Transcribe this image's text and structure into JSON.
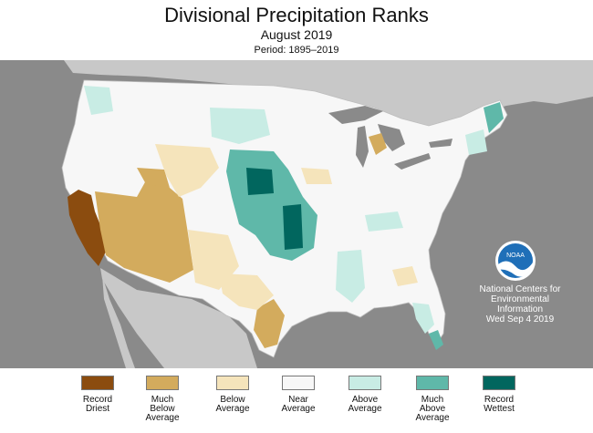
{
  "header": {
    "title": "Divisional Precipitation Ranks",
    "subtitle": "August 2019",
    "period": "Period: 1895–2019"
  },
  "credit": {
    "line1": "National Centers for",
    "line2": "Environmental",
    "line3": "Information",
    "date": "Wed Sep  4 2019",
    "logo_text": "NOAA"
  },
  "legend": {
    "items": [
      {
        "label": "Record\nDriest",
        "color": "#8b4c0f"
      },
      {
        "label": "Much\nBelow\nAverage",
        "color": "#d3ab5d"
      },
      {
        "label": "Below\nAverage",
        "color": "#f5e4bb"
      },
      {
        "label": "Near\nAverage",
        "color": "#f7f7f7"
      },
      {
        "label": "Above\nAverage",
        "color": "#c8ece4"
      },
      {
        "label": "Much\nAbove\nAverage",
        "color": "#5fb8a9"
      },
      {
        "label": "Record\nWettest",
        "color": "#01665e"
      }
    ]
  },
  "colors": {
    "ocean": "#8a8a8a",
    "land_outside": "#c8c8c8",
    "near": "#f7f7f7",
    "water": "#8a8a8a"
  }
}
